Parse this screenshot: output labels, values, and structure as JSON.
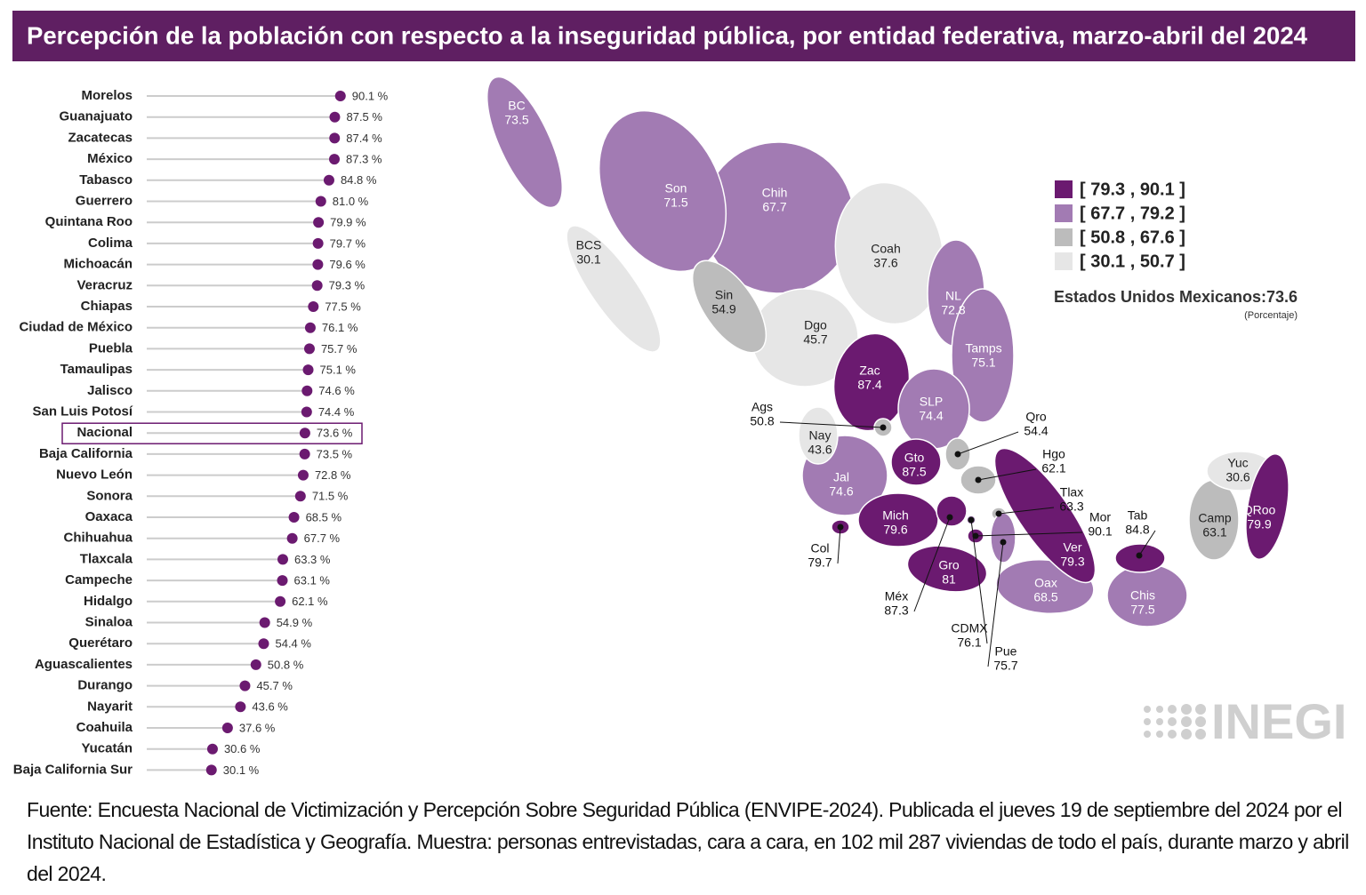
{
  "title": "Percepción de la población con respecto a la inseguridad pública, por entidad federativa, marzo-abril del 2024",
  "chart_data": [
    {
      "type": "lollipop",
      "categories": [
        "Morelos",
        "Guanajuato",
        "Zacatecas",
        "México",
        "Tabasco",
        "Guerrero",
        "Quintana Roo",
        "Colima",
        "Michoacán",
        "Veracruz",
        "Chiapas",
        "Ciudad de México",
        "Puebla",
        "Tamaulipas",
        "Jalisco",
        "San Luis Potosí",
        "Nacional",
        "Baja California",
        "Nuevo León",
        "Sonora",
        "Oaxaca",
        "Chihuahua",
        "Tlaxcala",
        "Campeche",
        "Hidalgo",
        "Sinaloa",
        "Querétaro",
        "Aguascalientes",
        "Durango",
        "Nayarit",
        "Coahuila",
        "Yucatán",
        "Baja California Sur"
      ],
      "values": [
        90.1,
        87.5,
        87.4,
        87.3,
        84.8,
        81.0,
        79.9,
        79.7,
        79.6,
        79.3,
        77.5,
        76.1,
        75.7,
        75.1,
        74.6,
        74.4,
        73.6,
        73.5,
        72.8,
        71.5,
        68.5,
        67.7,
        63.3,
        63.1,
        62.1,
        54.9,
        54.4,
        50.8,
        45.7,
        43.6,
        37.6,
        30.6,
        30.1
      ],
      "value_labels": [
        "90.1 %",
        "87.5 %",
        "87.4 %",
        "87.3 %",
        "84.8 %",
        "81.0 %",
        "79.9 %",
        "79.7 %",
        "79.6 %",
        "79.3 %",
        "77.5 %",
        "76.1 %",
        "75.7 %",
        "75.1 %",
        "74.6 %",
        "74.4 %",
        "73.6 %",
        "73.5 %",
        "72.8 %",
        "71.5 %",
        "68.5 %",
        "67.7 %",
        "63.3 %",
        "63.1 %",
        "62.1 %",
        "54.9 %",
        "54.4 %",
        "50.8 %",
        "45.7 %",
        "43.6 %",
        "37.6 %",
        "30.6 %",
        "30.1 %"
      ],
      "color": "#6b1a70",
      "highlight": "Nacional"
    },
    {
      "type": "choropleth",
      "regions": [
        {
          "name": "Chih",
          "value": 67.7
        },
        {
          "name": "Son",
          "value": 71.5
        },
        {
          "name": "Coah",
          "value": 37.6
        },
        {
          "name": "BC",
          "value": 73.5
        },
        {
          "name": "BCS",
          "value": 30.1
        },
        {
          "name": "Dgo",
          "value": 45.7
        },
        {
          "name": "NL",
          "value": 72.8
        },
        {
          "name": "Tamps",
          "value": 75.1
        },
        {
          "name": "Sin",
          "value": 54.9
        },
        {
          "name": "Zac",
          "value": 87.4
        },
        {
          "name": "SLP",
          "value": 74.4
        },
        {
          "name": "Jal",
          "value": 74.6
        },
        {
          "name": "Nay",
          "value": 43.6
        },
        {
          "name": "Gto",
          "value": 87.5
        },
        {
          "name": "Mich",
          "value": 79.6
        },
        {
          "name": "Gro",
          "value": 81.0
        },
        {
          "name": "Oax",
          "value": 68.5
        },
        {
          "name": "Ver",
          "value": 79.3
        },
        {
          "name": "Chis",
          "value": 77.5
        },
        {
          "name": "Camp",
          "value": 63.1
        },
        {
          "name": "Yuc",
          "value": 30.6
        },
        {
          "name": "QRoo",
          "value": 79.9
        },
        {
          "name": "Tab",
          "value": 84.8
        },
        {
          "name": "Ags",
          "value": 50.8
        },
        {
          "name": "Qro",
          "value": 54.4
        },
        {
          "name": "Hgo",
          "value": 62.1
        },
        {
          "name": "Tlax",
          "value": 63.3
        },
        {
          "name": "Col",
          "value": 79.7
        },
        {
          "name": "Méx",
          "value": 87.3
        },
        {
          "name": "Mor",
          "value": 90.1
        },
        {
          "name": "CDMX",
          "value": 76.1
        },
        {
          "name": "Pue",
          "value": 75.7
        }
      ],
      "legend": [
        {
          "label": "[ 79.3 , 90.1 ]",
          "min": 79.3,
          "max": 90.1,
          "color": "#6b1a70"
        },
        {
          "label": "[ 67.7 , 79.2 ]",
          "min": 67.7,
          "max": 79.2,
          "color": "#a27bb3"
        },
        {
          "label": "[ 50.8 , 67.6 ]",
          "min": 50.8,
          "max": 67.6,
          "color": "#bcbcbc"
        },
        {
          "label": "[ 30.1 , 50.7 ]",
          "min": 30.1,
          "max": 50.7,
          "color": "#e6e6e6"
        }
      ],
      "national_label": "Estados Unidos Mexicanos:",
      "national_value": 73.6,
      "unit_note": "(Porcentaje)"
    }
  ],
  "logo": "INEGI",
  "footnote": "Fuente: Encuesta Nacional de Victimización y Percepción Sobre Seguridad Pública (ENVIPE-2024). Publicada el jueves 19 de septiembre del 2024 por el Instituto Nacional de Estadística y Geografía. Muestra: personas entrevistadas, cara a cara, en 102 mil 287 viviendas de todo el país, durante marzo y abril del 2024."
}
